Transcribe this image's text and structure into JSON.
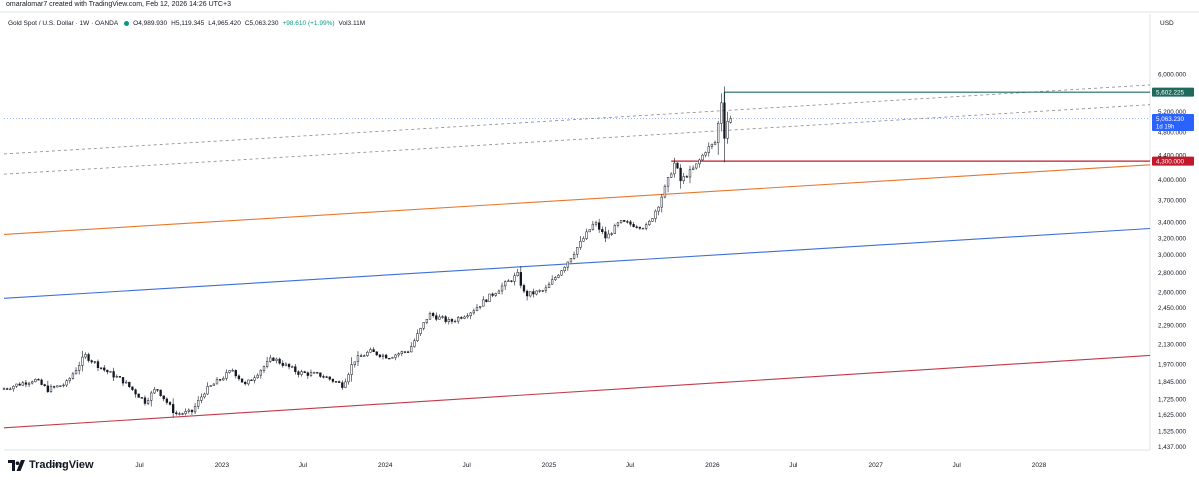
{
  "credit": "omaralomar7 created with TradingView.com, Feb 12, 2026 14:26 UTC+3",
  "legend": {
    "symbol": "Gold Spot / U.S. Dollar · 1W · OANDA",
    "open": "O4,989.930",
    "high": "H5,119.345",
    "low": "L4,965.420",
    "close": "C5,063.230",
    "change": "+98.610 (+1.99%)",
    "volume": "Vol3.11M"
  },
  "brand": "TradingView",
  "chart_data": {
    "type": "candlestick",
    "scale": "log",
    "currency_label": "USD",
    "ylim": [
      1430,
      6950
    ],
    "y_ticks": [
      {
        "v": 6000,
        "label": "6,000.000"
      },
      {
        "v": 5600,
        "label": "5,600.000"
      },
      {
        "v": 5200,
        "label": "5,200.000"
      },
      {
        "v": 4800,
        "label": "4,800.000"
      },
      {
        "v": 4400,
        "label": "4,400.000"
      },
      {
        "v": 4000,
        "label": "4,000.000"
      },
      {
        "v": 3700,
        "label": "3,700.000"
      },
      {
        "v": 3400,
        "label": "3,400.000"
      },
      {
        "v": 3200,
        "label": "3,200.000"
      },
      {
        "v": 3000,
        "label": "3,000.000"
      },
      {
        "v": 2800,
        "label": "2,800.000"
      },
      {
        "v": 2600,
        "label": "2,600.000"
      },
      {
        "v": 2450,
        "label": "2,450.000"
      },
      {
        "v": 2290,
        "label": "2,290.000"
      },
      {
        "v": 2130,
        "label": "2,130.000"
      },
      {
        "v": 1970,
        "label": "1,970.000"
      },
      {
        "v": 1845,
        "label": "1,845.000"
      },
      {
        "v": 1725,
        "label": "1,725.000"
      },
      {
        "v": 1625,
        "label": "1,625.000"
      },
      {
        "v": 1525,
        "label": "1,525.000"
      },
      {
        "v": 1437,
        "label": "1,437.000"
      }
    ],
    "x_range": [
      "2021-09-01",
      "2028-09-05"
    ],
    "x_ticks": [
      {
        "d": "2022-01-01",
        "label": "2022"
      },
      {
        "d": "2022-07-01",
        "label": "Jul"
      },
      {
        "d": "2023-01-01",
        "label": "2023"
      },
      {
        "d": "2023-07-01",
        "label": "Jul"
      },
      {
        "d": "2024-01-01",
        "label": "2024"
      },
      {
        "d": "2024-07-01",
        "label": "Jul"
      },
      {
        "d": "2025-01-01",
        "label": "2025"
      },
      {
        "d": "2025-07-01",
        "label": "Jul"
      },
      {
        "d": "2026-01-01",
        "label": "2026"
      },
      {
        "d": "2026-07-01",
        "label": "Jul"
      },
      {
        "d": "2027-01-01",
        "label": "2027"
      },
      {
        "d": "2027-07-01",
        "label": "Jul"
      },
      {
        "d": "2028-01-01",
        "label": "2028"
      }
    ],
    "price_path": [
      [
        "2021-09-01",
        1790
      ],
      [
        "2021-11-15",
        1860
      ],
      [
        "2021-12-15",
        1790
      ],
      [
        "2022-01-25",
        1830
      ],
      [
        "2022-03-08",
        2040
      ],
      [
        "2022-04-20",
        1930
      ],
      [
        "2022-06-01",
        1850
      ],
      [
        "2022-07-20",
        1710
      ],
      [
        "2022-08-15",
        1800
      ],
      [
        "2022-09-26",
        1630
      ],
      [
        "2022-11-01",
        1640
      ],
      [
        "2022-12-01",
        1780
      ],
      [
        "2023-02-01",
        1930
      ],
      [
        "2023-03-01",
        1820
      ],
      [
        "2023-05-01",
        2020
      ],
      [
        "2023-06-28",
        1910
      ],
      [
        "2023-08-20",
        1890
      ],
      [
        "2023-10-05",
        1820
      ],
      [
        "2023-10-30",
        2000
      ],
      [
        "2023-12-04",
        2070
      ],
      [
        "2024-01-15",
        2030
      ],
      [
        "2024-03-01",
        2080
      ],
      [
        "2024-04-15",
        2390
      ],
      [
        "2024-06-01",
        2320
      ],
      [
        "2024-07-20",
        2420
      ],
      [
        "2024-09-25",
        2660
      ],
      [
        "2024-10-30",
        2780
      ],
      [
        "2024-11-15",
        2570
      ],
      [
        "2024-12-30",
        2620
      ],
      [
        "2025-02-15",
        2900
      ],
      [
        "2025-04-20",
        3400
      ],
      [
        "2025-05-15",
        3200
      ],
      [
        "2025-06-15",
        3400
      ],
      [
        "2025-08-15",
        3340
      ],
      [
        "2025-09-10",
        3640
      ],
      [
        "2025-10-17",
        4300
      ],
      [
        "2025-10-28",
        3980
      ],
      [
        "2025-11-30",
        4200
      ],
      [
        "2025-12-26",
        4500
      ],
      [
        "2026-01-15",
        4620
      ],
      [
        "2026-01-28",
        5400
      ],
      [
        "2026-02-02",
        4650
      ],
      [
        "2026-02-12",
        5063
      ]
    ],
    "last_candle": {
      "date": "2026-02-12",
      "open": 4989.93,
      "high": 5119.345,
      "low": 4965.42,
      "close": 5063.23
    },
    "lines": [
      {
        "name": "dashed-upper-channel",
        "color": "#868993",
        "dash": true,
        "p1": [
          "2021-09-01",
          4420
        ],
        "p2": [
          "2028-09-05",
          5760
        ]
      },
      {
        "name": "dashed-middle-channel",
        "color": "#868993",
        "dash": true,
        "p1": [
          "2021-09-01",
          4090
        ],
        "p2": [
          "2028-09-05",
          5340
        ]
      },
      {
        "name": "orange-trendline",
        "color": "#e8772e",
        "p1": [
          "2021-09-01",
          3245
        ],
        "p2": [
          "2028-09-05",
          4240
        ]
      },
      {
        "name": "blue-trendline",
        "color": "#3d6fd6",
        "p1": [
          "2021-09-01",
          2540
        ],
        "p2": [
          "2028-09-05",
          3320
        ]
      },
      {
        "name": "red-trendline",
        "color": "#c23a4a",
        "p1": [
          "2021-09-01",
          1545
        ],
        "p2": [
          "2028-09-05",
          2040
        ]
      }
    ],
    "levels": [
      {
        "name": "resistance-level",
        "value": 5602.225,
        "label": "5,602.225",
        "color": "#1e6b5e",
        "from": "2026-01-28"
      },
      {
        "name": "support-level",
        "value": 4300,
        "label": "4,300.000",
        "color": "#c2182b",
        "from": "2025-10-01"
      }
    ],
    "current_price": {
      "label": "5,063.230",
      "countdown": "1d 19h",
      "color": "#2962ff"
    }
  }
}
